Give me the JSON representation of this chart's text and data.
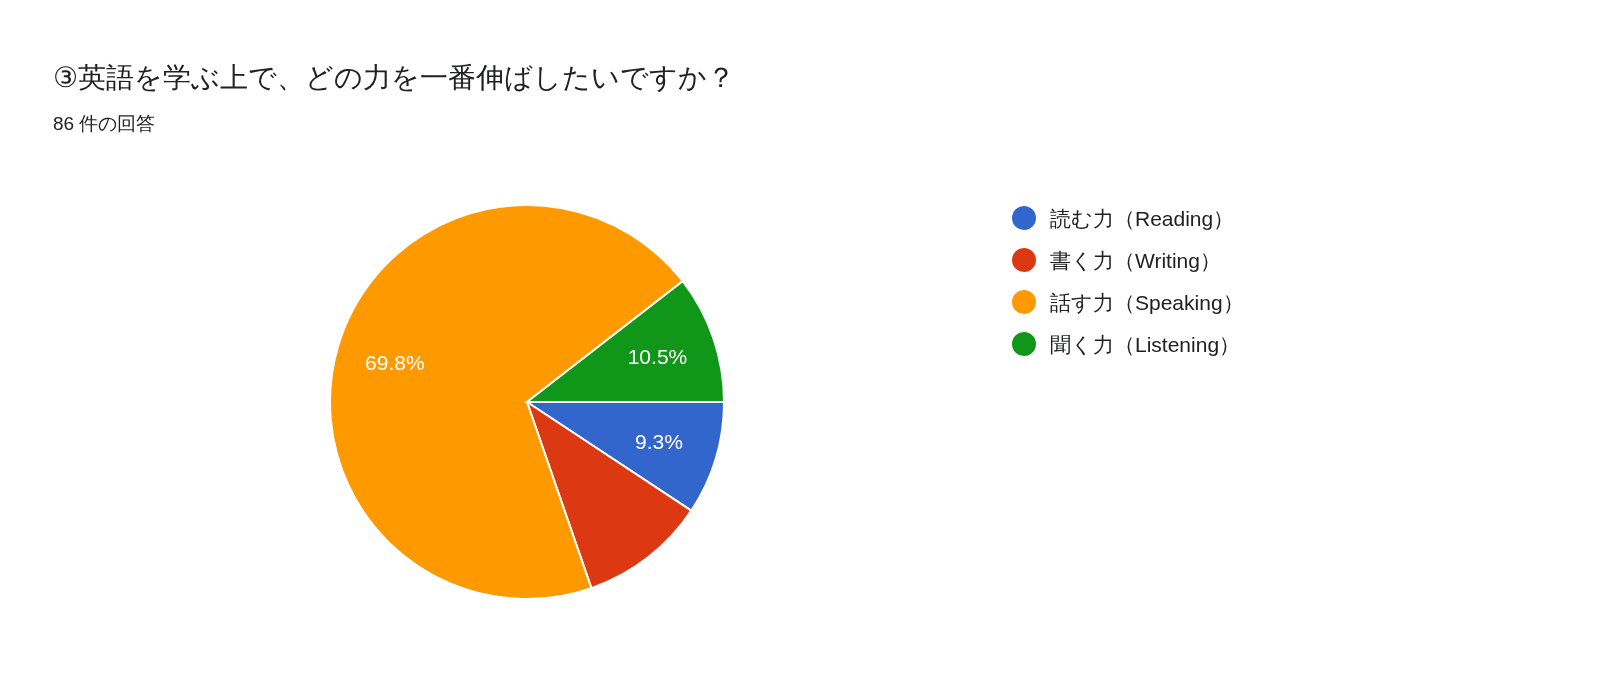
{
  "chart_data": {
    "type": "pie",
    "title": "③英語を学ぶ上で、どの力を一番伸ばしたいですか？",
    "subtitle": "86 件の回答",
    "categories": [
      "読む力（Reading）",
      "書く力（Writing）",
      "話す力（Speaking）",
      "聞く力（Listening）"
    ],
    "values": [
      9.3,
      10.4,
      69.8,
      10.5
    ],
    "colors": [
      "#3366cc",
      "#dc3912",
      "#ff9900",
      "#109618"
    ],
    "value_labels": [
      "9.3%",
      null,
      "69.8%",
      "10.5%"
    ],
    "legend": "right"
  }
}
